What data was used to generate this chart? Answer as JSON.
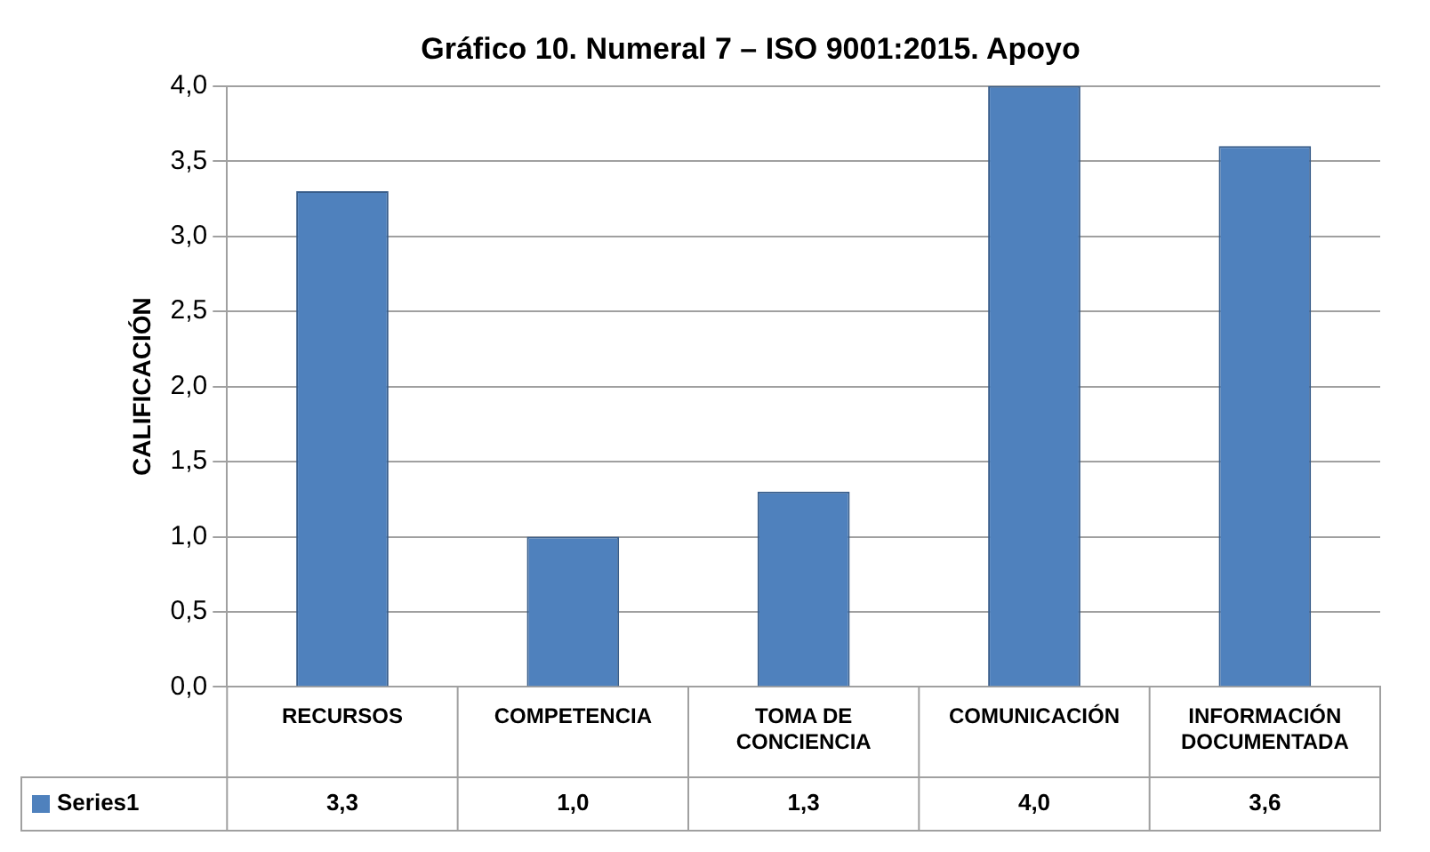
{
  "chart_data": {
    "type": "bar",
    "title": "Gráfico 10. Numeral 7 – ISO 9001:2015. Apoyo",
    "ylabel": "CALIFICACIÓN",
    "categories": [
      "RECURSOS",
      "COMPETENCIA",
      "TOMA DE CONCIENCIA",
      "COMUNICACIÓN",
      "INFORMACIÓN DOCUMENTADA"
    ],
    "series": [
      {
        "name": "Series1",
        "color": "#4f81bd",
        "values": [
          3.3,
          1.0,
          1.3,
          4.0,
          3.6
        ],
        "value_labels": [
          "3,3",
          "1,0",
          "1,3",
          "4,0",
          "3,6"
        ]
      }
    ],
    "ylim": [
      0,
      4
    ],
    "yticks": [
      {
        "value": 0,
        "label": "0,0"
      },
      {
        "value": 0.5,
        "label": "0,5"
      },
      {
        "value": 1,
        "label": "1,0"
      },
      {
        "value": 1.5,
        "label": "1,5"
      },
      {
        "value": 2,
        "label": "2,0"
      },
      {
        "value": 2.5,
        "label": "2,5"
      },
      {
        "value": 3,
        "label": "3,0"
      },
      {
        "value": 3.5,
        "label": "3,5"
      },
      {
        "value": 4,
        "label": "4,0"
      }
    ],
    "grid": "y",
    "legend": "bottom"
  }
}
